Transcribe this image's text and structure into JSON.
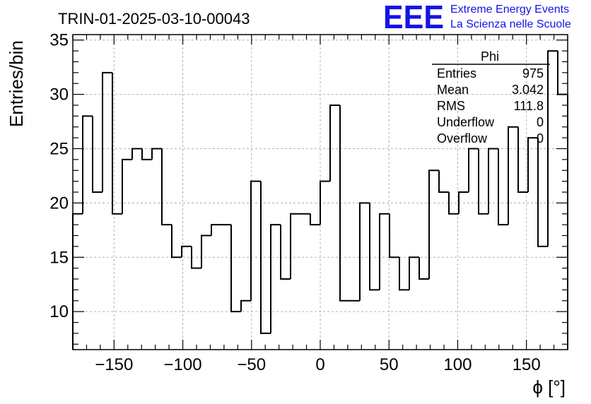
{
  "header": {
    "title": "TRIN-01-2025-03-10-00043",
    "logo_text": "EEE",
    "logo_line1": "Extreme Energy Events",
    "logo_line2": "La Scienza nelle Scuole",
    "logo_color": "#1414e6"
  },
  "stats": {
    "name": "Phi",
    "rows": [
      {
        "label": "Entries",
        "value": "975"
      },
      {
        "label": "Mean",
        "value": "3.042"
      },
      {
        "label": "RMS",
        "value": "111.8"
      },
      {
        "label": "Underflow",
        "value": "0"
      },
      {
        "label": "Overflow",
        "value": "0"
      }
    ]
  },
  "chart_data": {
    "type": "bar",
    "style": "step-histogram",
    "title": "TRIN-01-2025-03-10-00043",
    "xlabel": "ϕ [°]",
    "ylabel": "Entries/bin",
    "xlim": [
      -180,
      180
    ],
    "ylim": [
      6.5,
      35.5
    ],
    "bin_width": 7.2,
    "bin_edges_start": -180,
    "values": [
      19,
      28,
      21,
      32,
      19,
      24,
      25,
      24,
      25,
      18,
      15,
      16,
      14,
      17,
      18,
      18,
      10,
      11,
      22,
      8,
      18,
      13,
      19,
      19,
      18,
      22,
      29,
      11,
      11,
      20,
      12,
      19,
      15,
      12,
      15,
      13,
      23,
      21,
      19,
      21,
      25,
      19,
      25,
      18,
      27,
      21,
      26,
      16,
      34,
      30
    ],
    "x_ticks": [
      -150,
      -100,
      -50,
      0,
      50,
      100,
      150
    ],
    "x_tick_labels": [
      "−150",
      "−100",
      "−50",
      "0",
      "50",
      "100",
      "150"
    ],
    "y_ticks": [
      10,
      15,
      20,
      25,
      30,
      35
    ],
    "y_tick_labels": [
      "10",
      "15",
      "20",
      "25",
      "30",
      "35"
    ],
    "grid": true,
    "line_color": "#000000"
  }
}
